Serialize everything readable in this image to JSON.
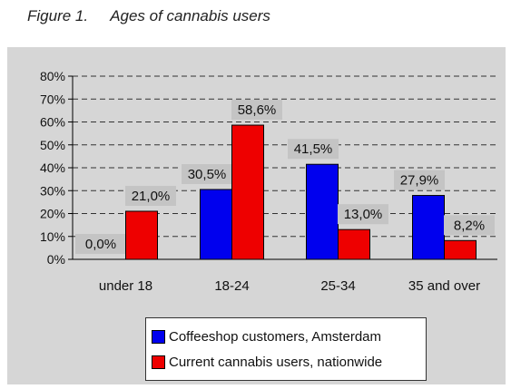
{
  "figure": {
    "number": "Figure 1.",
    "title": "Ages of cannabis users"
  },
  "chart_data": {
    "type": "bar",
    "categories": [
      "under 18",
      "18-24",
      "25-34",
      "35 and over"
    ],
    "series": [
      {
        "name": "Coffeeshop customers, Amsterdam",
        "color": "#0000ee",
        "values": [
          0.0,
          30.5,
          41.5,
          27.9
        ],
        "labels": [
          "0,0%",
          "30,5%",
          "41,5%",
          "27,9%"
        ]
      },
      {
        "name": "Current cannabis users, nationwide",
        "color": "#ee0000",
        "values": [
          21.0,
          58.6,
          13.0,
          8.2
        ],
        "labels": [
          "21,0%",
          "58,6%",
          "13,0%",
          "8,2%"
        ]
      }
    ],
    "ylim": [
      0,
      80
    ],
    "yticks": [
      0,
      10,
      20,
      30,
      40,
      50,
      60,
      70,
      80
    ],
    "ytick_labels": [
      "0%",
      "10%",
      "20%",
      "30%",
      "40%",
      "50%",
      "60%",
      "70%",
      "80%"
    ],
    "grid": "dashed horizontal",
    "legend_position": "bottom",
    "xlabel": "",
    "ylabel": ""
  }
}
